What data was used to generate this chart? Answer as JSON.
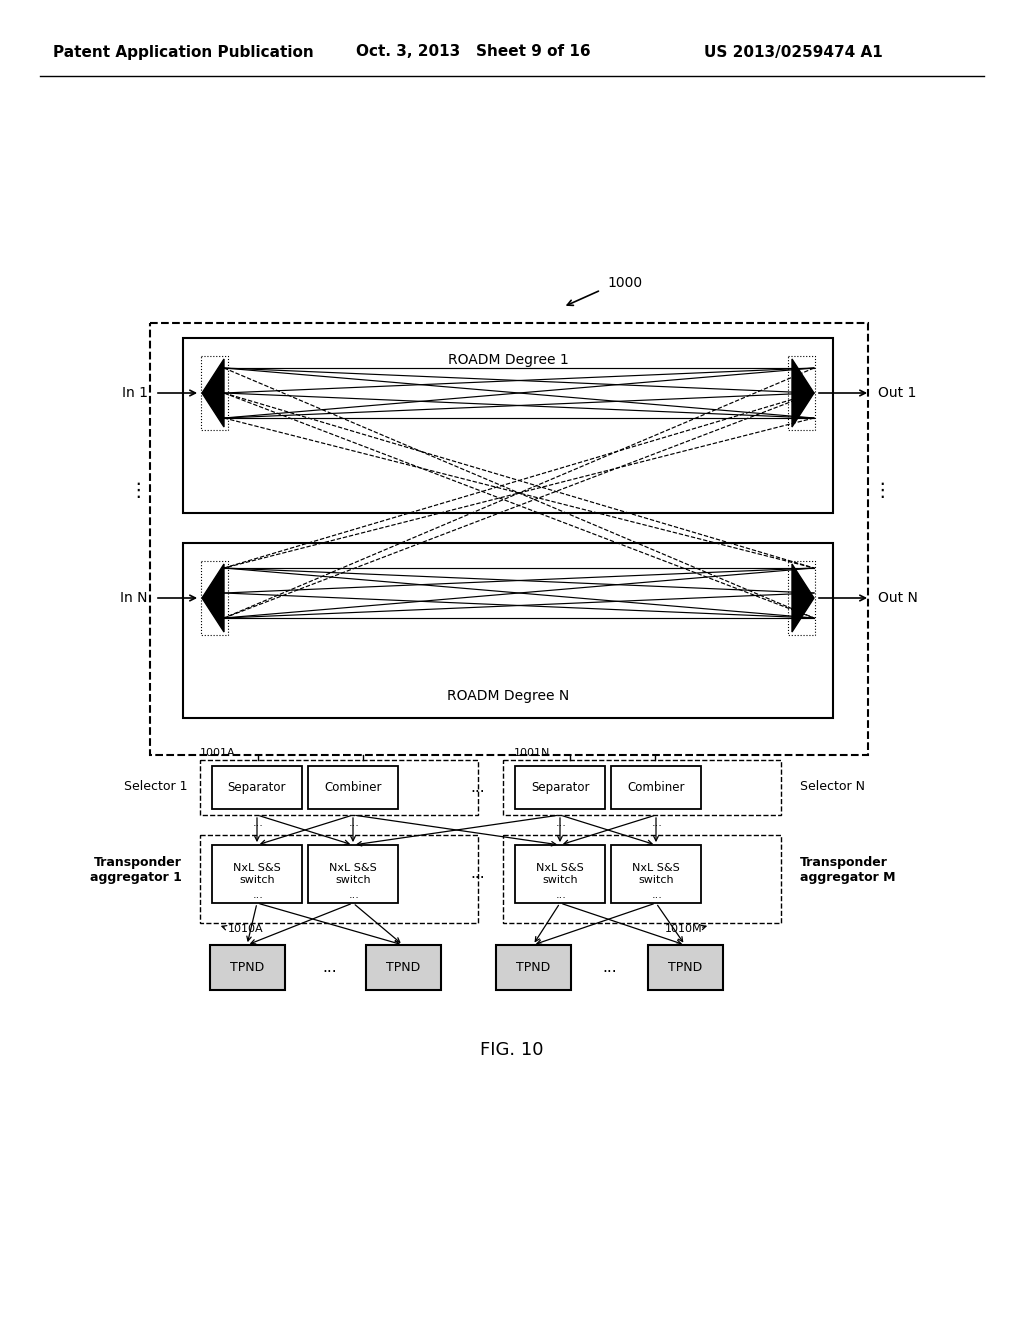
{
  "bg_color": "#ffffff",
  "header_left": "Patent Application Publication",
  "header_mid": "Oct. 3, 2013   Sheet 9 of 16",
  "header_right": "US 2013/0259474 A1",
  "fig_label": "FIG. 10",
  "ref_1000": "1000",
  "roadm1_label": "ROADM Degree 1",
  "roadmN_label": "ROADM Degree N",
  "in1": "In 1",
  "inN": "In N",
  "out1": "Out 1",
  "outN": "Out N",
  "selector1": "Selector 1",
  "selectorN": "Selector N",
  "separator": "Separator",
  "combiner": "Combiner",
  "ref_1001A": "1001A",
  "ref_1001N": "1001N",
  "transponder1": "Transponder\naggregator 1",
  "transponderM": "Transponder\naggregator M",
  "switch_text": "NxL S&S\nswitch",
  "tpnd": "TPND",
  "ref_1010A": "1010A",
  "ref_1010M": "1010M",
  "dots": "..."
}
